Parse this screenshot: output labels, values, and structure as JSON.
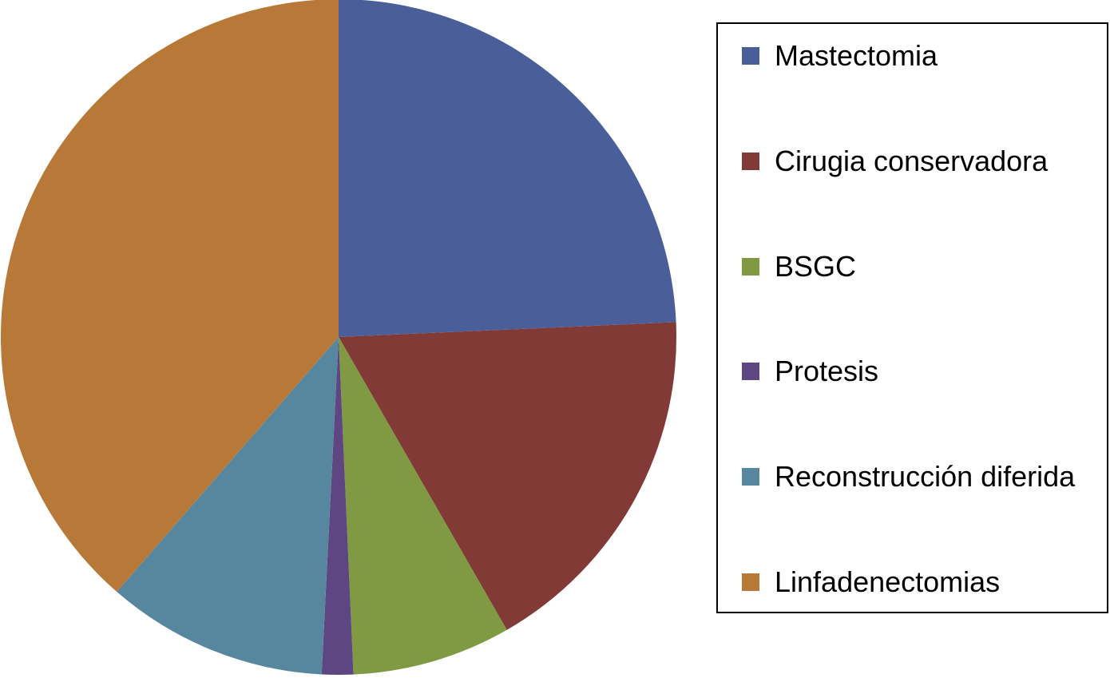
{
  "chart_data": {
    "type": "pie",
    "categories": [
      "Mastectomia",
      "Cirugia conservadora",
      "BSGC",
      "Protesis",
      "Reconstrucción diferida",
      "Linfadenectomias"
    ],
    "values": [
      24.3,
      17.4,
      7.6,
      1.5,
      10.6,
      38.6
    ],
    "colors": [
      "#4a5f99",
      "#823a36",
      "#7f9a42",
      "#5d4682",
      "#56879f",
      "#b87938"
    ],
    "legend": "right"
  }
}
